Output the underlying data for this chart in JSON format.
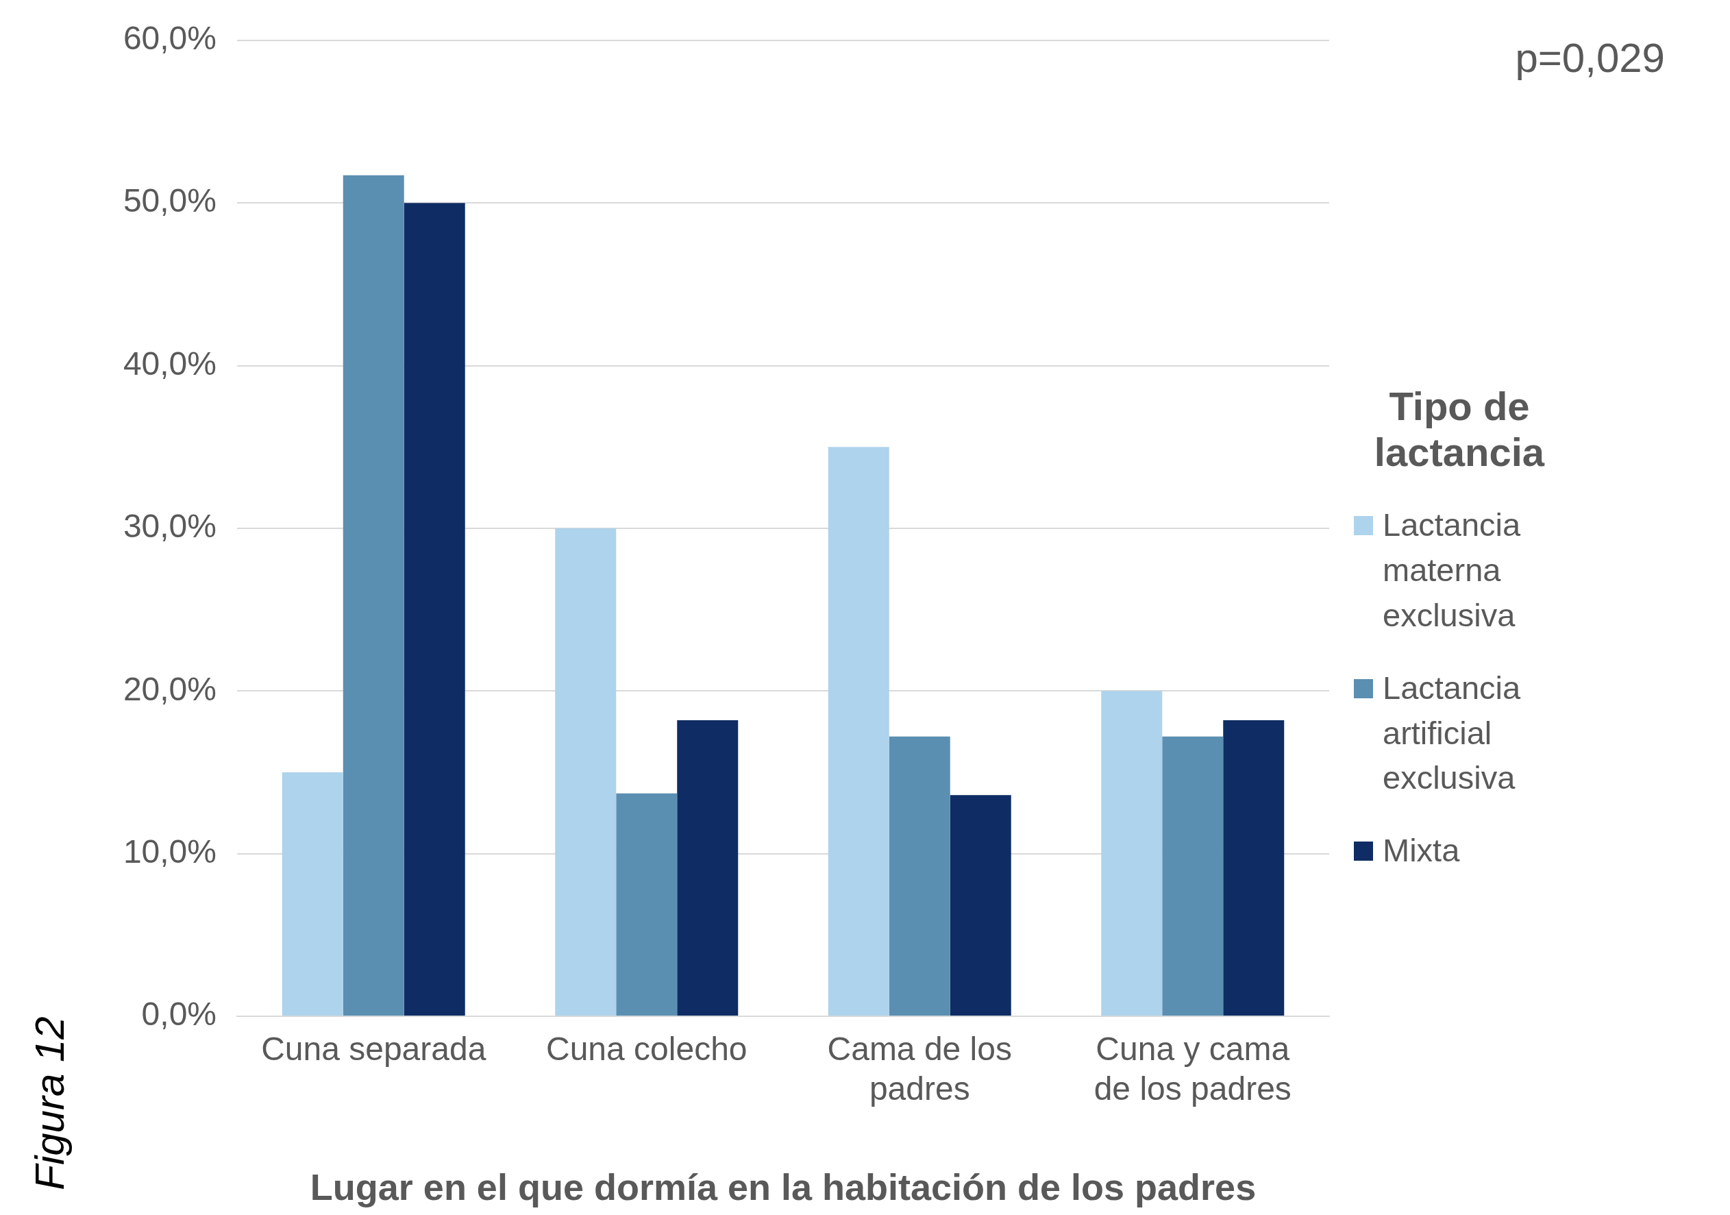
{
  "chart_data": {
    "type": "bar",
    "xlabel": "Lugar en el que dormía en la habitación de los padres",
    "legend_title": "Tipo de lactancia",
    "annotations": [
      "p=0,029",
      "Figura 12"
    ],
    "categories": [
      "Cuna separada",
      "Cuna colecho",
      "Cama de los padres",
      "Cuna y cama de los padres"
    ],
    "series": [
      {
        "name": "Lactancia materna exclusiva",
        "color": "#aed3ec",
        "values": [
          15.0,
          30.0,
          35.0,
          20.0
        ]
      },
      {
        "name": "Lactancia artificial exclusiva",
        "color": "#5b8fb1",
        "values": [
          51.7,
          13.7,
          17.2,
          17.2
        ]
      },
      {
        "name": "Mixta",
        "color": "#0f2d64",
        "values": [
          50.0,
          18.2,
          13.6,
          18.2
        ]
      }
    ],
    "ylim": [
      0,
      60
    ],
    "yticks": [
      {
        "value": 0,
        "label": "0,0%"
      },
      {
        "value": 10,
        "label": "10,0%"
      },
      {
        "value": 20,
        "label": "20,0%"
      },
      {
        "value": 30,
        "label": "30,0%"
      },
      {
        "value": 40,
        "label": "40,0%"
      },
      {
        "value": 50,
        "label": "50,0%"
      },
      {
        "value": 60,
        "label": "60,0%"
      }
    ],
    "grid": "y",
    "legend": "right"
  }
}
